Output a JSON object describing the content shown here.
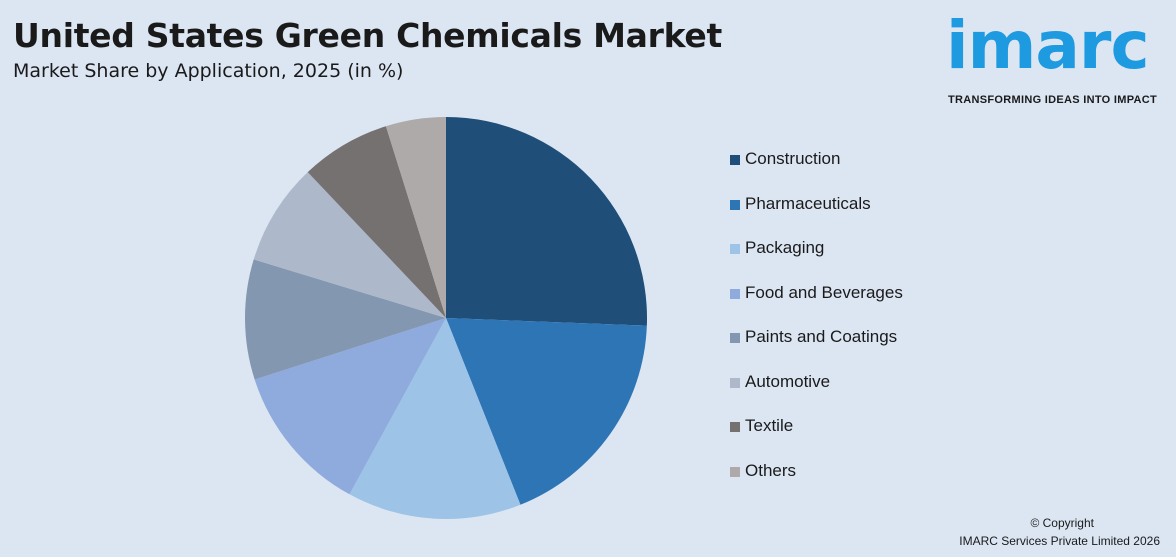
{
  "header": {
    "title": "United States Green Chemicals Market",
    "subtitle": "Market Share by Application, 2025 (in %)"
  },
  "logo": {
    "word": "imarc",
    "tagline": "TRANSFORMING IDEAS INTO IMPACT",
    "color": "#1e9ae0"
  },
  "chart_data": {
    "type": "pie",
    "title": "United States Green Chemicals Market",
    "subtitle": "Market Share by Application, 2025 (in %)",
    "legend_position": "right",
    "start_angle_deg": 0,
    "direction": "clockwise",
    "slices": [
      {
        "label": "Construction",
        "value": 26.5,
        "color": "#1f4e79"
      },
      {
        "label": "Pharmaceuticals",
        "value": 19.0,
        "color": "#2e75b6"
      },
      {
        "label": "Packaging",
        "value": 14.5,
        "color": "#9dc3e6"
      },
      {
        "label": "Food and Beverages",
        "value": 12.5,
        "color": "#8faadc"
      },
      {
        "label": "Paints and Coatings",
        "value": 10.0,
        "color": "#8497b0"
      },
      {
        "label": "Automotive",
        "value": 8.5,
        "color": "#adb9ca"
      },
      {
        "label": "Textile",
        "value": 7.5,
        "color": "#767171"
      },
      {
        "label": "Others",
        "value": 5.0,
        "color": "#aeaaaa"
      }
    ]
  },
  "footer": {
    "copyright": "© Copyright",
    "company": "IMARC Services Private Limited 2026"
  }
}
